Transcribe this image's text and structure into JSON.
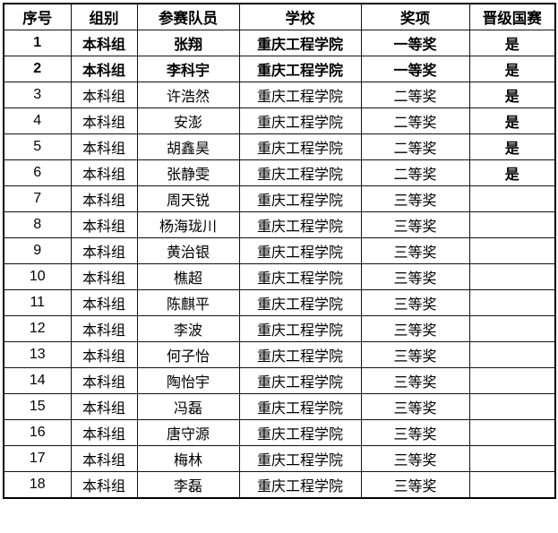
{
  "table": {
    "columns": [
      {
        "key": "no",
        "label": "序号"
      },
      {
        "key": "group",
        "label": "组别"
      },
      {
        "key": "member",
        "label": "参赛队员"
      },
      {
        "key": "school",
        "label": "学校"
      },
      {
        "key": "award",
        "label": "奖项"
      },
      {
        "key": "advance",
        "label": "晋级国赛"
      }
    ],
    "rows": [
      {
        "no": "1",
        "group": "本科组",
        "member": "张翔",
        "school": "重庆工程学院",
        "award": "一等奖",
        "advance": "是",
        "row_bold": true
      },
      {
        "no": "2",
        "group": "本科组",
        "member": "李科宇",
        "school": "重庆工程学院",
        "award": "一等奖",
        "advance": "是",
        "row_bold": true
      },
      {
        "no": "3",
        "group": "本科组",
        "member": "许浩然",
        "school": "重庆工程学院",
        "award": "二等奖",
        "advance": "是",
        "row_bold": false
      },
      {
        "no": "4",
        "group": "本科组",
        "member": "安澎",
        "school": "重庆工程学院",
        "award": "二等奖",
        "advance": "是",
        "row_bold": false
      },
      {
        "no": "5",
        "group": "本科组",
        "member": "胡鑫昊",
        "school": "重庆工程学院",
        "award": "二等奖",
        "advance": "是",
        "row_bold": false
      },
      {
        "no": "6",
        "group": "本科组",
        "member": "张静雯",
        "school": "重庆工程学院",
        "award": "二等奖",
        "advance": "是",
        "row_bold": false
      },
      {
        "no": "7",
        "group": "本科组",
        "member": "周天锐",
        "school": "重庆工程学院",
        "award": "三等奖",
        "advance": "",
        "row_bold": false
      },
      {
        "no": "8",
        "group": "本科组",
        "member": "杨海珑川",
        "school": "重庆工程学院",
        "award": "三等奖",
        "advance": "",
        "row_bold": false
      },
      {
        "no": "9",
        "group": "本科组",
        "member": "黄治银",
        "school": "重庆工程学院",
        "award": "三等奖",
        "advance": "",
        "row_bold": false
      },
      {
        "no": "10",
        "group": "本科组",
        "member": "樵超",
        "school": "重庆工程学院",
        "award": "三等奖",
        "advance": "",
        "row_bold": false
      },
      {
        "no": "11",
        "group": "本科组",
        "member": "陈麒平",
        "school": "重庆工程学院",
        "award": "三等奖",
        "advance": "",
        "row_bold": false
      },
      {
        "no": "12",
        "group": "本科组",
        "member": "李波",
        "school": "重庆工程学院",
        "award": "三等奖",
        "advance": "",
        "row_bold": false
      },
      {
        "no": "13",
        "group": "本科组",
        "member": "何子怡",
        "school": "重庆工程学院",
        "award": "三等奖",
        "advance": "",
        "row_bold": false
      },
      {
        "no": "14",
        "group": "本科组",
        "member": "陶怡宇",
        "school": "重庆工程学院",
        "award": "三等奖",
        "advance": "",
        "row_bold": false
      },
      {
        "no": "15",
        "group": "本科组",
        "member": "冯磊",
        "school": "重庆工程学院",
        "award": "三等奖",
        "advance": "",
        "row_bold": false
      },
      {
        "no": "16",
        "group": "本科组",
        "member": "唐守源",
        "school": "重庆工程学院",
        "award": "三等奖",
        "advance": "",
        "row_bold": false
      },
      {
        "no": "17",
        "group": "本科组",
        "member": "梅林",
        "school": "重庆工程学院",
        "award": "三等奖",
        "advance": "",
        "row_bold": false
      },
      {
        "no": "18",
        "group": "本科组",
        "member": "李磊",
        "school": "重庆工程学院",
        "award": "三等奖",
        "advance": "",
        "row_bold": false
      }
    ],
    "colors": {
      "text": "#000000",
      "border": "#111111",
      "background": "#ffffff"
    }
  }
}
